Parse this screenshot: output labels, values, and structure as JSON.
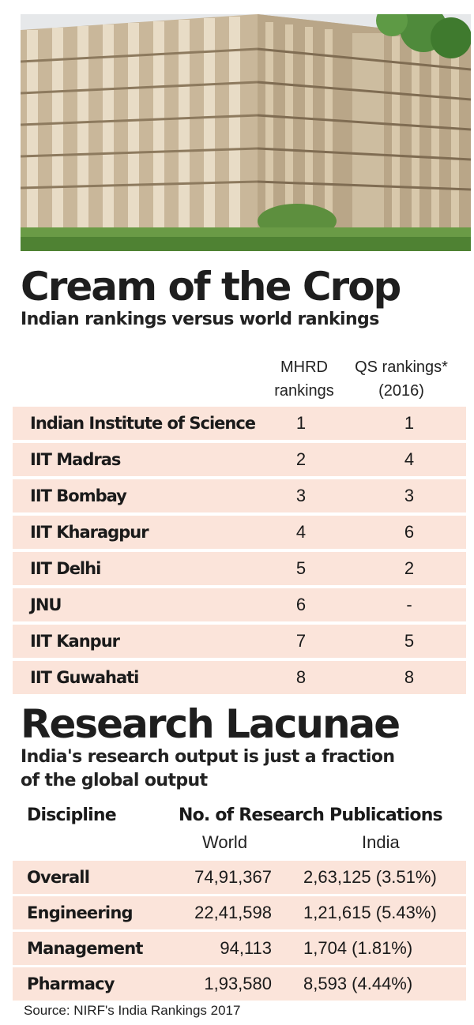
{
  "title1": "Cream of the Crop",
  "subtitle1": "Indian rankings versus world rankings",
  "rankings": {
    "col_mhrd": [
      "MHRD",
      "rankings"
    ],
    "col_qs": [
      "QS rankings*",
      "(2016)"
    ],
    "rows": [
      {
        "name": "Indian Institute of Science",
        "mhrd": "1",
        "qs": "1"
      },
      {
        "name": "IIT Madras",
        "mhrd": "2",
        "qs": "4"
      },
      {
        "name": "IIT Bombay",
        "mhrd": "3",
        "qs": "3"
      },
      {
        "name": "IIT Kharagpur",
        "mhrd": "4",
        "qs": "6"
      },
      {
        "name": "IIT Delhi",
        "mhrd": "5",
        "qs": "2"
      },
      {
        "name": "JNU",
        "mhrd": "6",
        "qs": "-"
      },
      {
        "name": "IIT Kanpur",
        "mhrd": "7",
        "qs": "5"
      },
      {
        "name": "IIT Guwahati",
        "mhrd": "8",
        "qs": "8"
      }
    ]
  },
  "title2": "Research Lacunae",
  "subtitle2": [
    "India's research output is just a fraction",
    "of the global output"
  ],
  "research": {
    "col_discipline": "Discipline",
    "col_pubs": "No. of Research Publications",
    "col_world": "World",
    "col_india": "India",
    "rows": [
      {
        "discipline": "Overall",
        "world": "74,91,367",
        "india": "2,63,125 (3.51%)"
      },
      {
        "discipline": "Engineering",
        "world": "22,41,598",
        "india": "1,21,615 (5.43%)"
      },
      {
        "discipline": "Management",
        "world": "94,113",
        "india": "1,704 (1.81%)"
      },
      {
        "discipline": "Pharmacy",
        "world": "1,93,580",
        "india": "8,593 (4.44%)"
      }
    ]
  },
  "source": "Source: NIRF's India Rankings 2017"
}
